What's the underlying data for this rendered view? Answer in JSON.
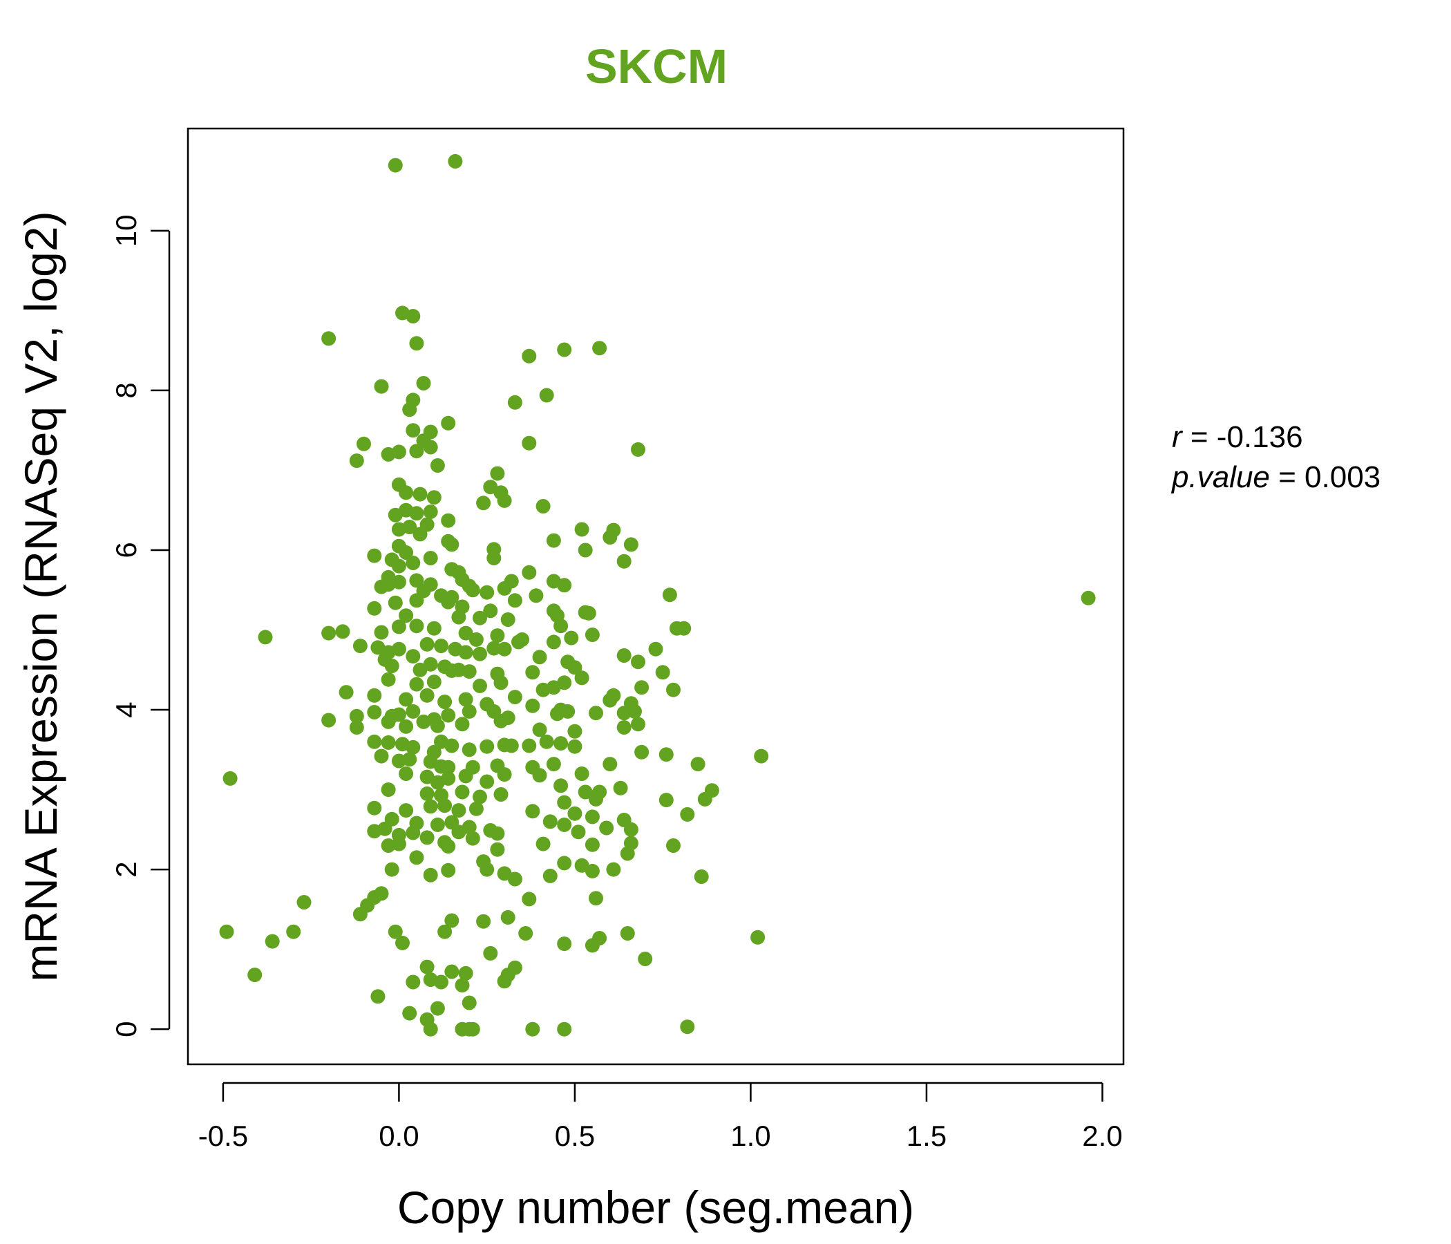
{
  "chart_data": {
    "type": "scatter",
    "title": "SKCM",
    "xlabel": "Copy number (seg.mean)",
    "ylabel": "mRNA Expression (RNASeq V2, log2)",
    "xlim": [
      -0.6,
      2.06
    ],
    "ylim": [
      -0.44,
      11.28
    ],
    "xticks": [
      -0.5,
      0.0,
      0.5,
      1.0,
      1.5,
      2.0
    ],
    "xtick_labels": [
      "-0.5",
      "0.0",
      "0.5",
      "1.0",
      "1.5",
      "2.0"
    ],
    "yticks": [
      0,
      2,
      4,
      6,
      8,
      10
    ],
    "ytick_labels": [
      "0",
      "2",
      "4",
      "6",
      "8",
      "10"
    ],
    "grid": false,
    "colors": {
      "point": "#62a420",
      "title": "#62a420",
      "axis": "#000000"
    },
    "annotations": {
      "r_label": "r",
      "r_value": " = -0.136",
      "p_label": "p.value",
      "p_value": " = 0.003"
    },
    "points": [
      [
        -0.01,
        10.82
      ],
      [
        0.16,
        10.87
      ],
      [
        0.01,
        8.97
      ],
      [
        0.04,
        8.93
      ],
      [
        -0.2,
        8.65
      ],
      [
        0.05,
        8.59
      ],
      [
        0.37,
        8.43
      ],
      [
        0.47,
        8.51
      ],
      [
        0.57,
        8.53
      ],
      [
        -0.05,
        8.05
      ],
      [
        0.07,
        8.09
      ],
      [
        0.42,
        7.94
      ],
      [
        0.04,
        7.88
      ],
      [
        0.03,
        7.76
      ],
      [
        0.33,
        7.85
      ],
      [
        0.04,
        7.5
      ],
      [
        0.09,
        7.48
      ],
      [
        0.14,
        7.59
      ],
      [
        -0.1,
        7.33
      ],
      [
        -0.12,
        7.12
      ],
      [
        -0.03,
        7.2
      ],
      [
        0.0,
        7.23
      ],
      [
        0.05,
        7.24
      ],
      [
        0.07,
        7.37
      ],
      [
        0.09,
        7.29
      ],
      [
        0.11,
        7.06
      ],
      [
        0.37,
        7.34
      ],
      [
        0.68,
        7.26
      ],
      [
        0.0,
        6.82
      ],
      [
        0.02,
        6.72
      ],
      [
        0.06,
        6.7
      ],
      [
        0.1,
        6.66
      ],
      [
        0.09,
        6.48
      ],
      [
        0.28,
        6.96
      ],
      [
        0.26,
        6.79
      ],
      [
        0.29,
        6.72
      ],
      [
        0.3,
        6.62
      ],
      [
        0.24,
        6.59
      ],
      [
        0.41,
        6.55
      ],
      [
        -0.01,
        6.44
      ],
      [
        0.02,
        6.5
      ],
      [
        0.05,
        6.46
      ],
      [
        0.08,
        6.32
      ],
      [
        0.14,
        6.37
      ],
      [
        0.0,
        6.26
      ],
      [
        0.03,
        6.29
      ],
      [
        0.06,
        6.2
      ],
      [
        0.14,
        6.11
      ],
      [
        0.15,
        6.07
      ],
      [
        0.44,
        6.12
      ],
      [
        0.52,
        6.26
      ],
      [
        0.61,
        6.25
      ],
      [
        0.6,
        6.16
      ],
      [
        0.66,
        6.07
      ],
      [
        0.0,
        6.05
      ],
      [
        0.02,
        5.97
      ],
      [
        0.27,
        6.01
      ],
      [
        0.53,
        6.0
      ],
      [
        -0.07,
        5.93
      ],
      [
        -0.02,
        5.88
      ],
      [
        0.0,
        5.8
      ],
      [
        0.04,
        5.84
      ],
      [
        0.09,
        5.9
      ],
      [
        0.27,
        5.9
      ],
      [
        0.64,
        5.86
      ],
      [
        0.15,
        5.76
      ],
      [
        0.17,
        5.72
      ],
      [
        0.37,
        5.72
      ],
      [
        -0.03,
        5.66
      ],
      [
        0.0,
        5.6
      ],
      [
        0.05,
        5.62
      ],
      [
        0.18,
        5.63
      ],
      [
        0.2,
        5.55
      ],
      [
        0.44,
        5.61
      ],
      [
        0.47,
        5.56
      ],
      [
        0.32,
        5.61
      ],
      [
        -0.05,
        5.54
      ],
      [
        -0.03,
        5.57
      ],
      [
        0.07,
        5.49
      ],
      [
        0.09,
        5.57
      ],
      [
        0.12,
        5.43
      ],
      [
        0.15,
        5.41
      ],
      [
        0.21,
        5.5
      ],
      [
        0.25,
        5.47
      ],
      [
        0.3,
        5.52
      ],
      [
        0.39,
        5.43
      ],
      [
        0.77,
        5.44
      ],
      [
        -0.01,
        5.34
      ],
      [
        0.05,
        5.37
      ],
      [
        0.14,
        5.35
      ],
      [
        0.18,
        5.29
      ],
      [
        0.26,
        5.24
      ],
      [
        0.33,
        5.37
      ],
      [
        0.44,
        5.24
      ],
      [
        0.53,
        5.22
      ],
      [
        0.54,
        5.21
      ],
      [
        -0.07,
        5.27
      ],
      [
        0.02,
        5.18
      ],
      [
        0.17,
        5.16
      ],
      [
        0.23,
        5.15
      ],
      [
        0.31,
        5.13
      ],
      [
        0.45,
        5.18
      ],
      [
        0.46,
        5.05
      ],
      [
        1.96,
        5.4
      ],
      [
        -0.2,
        4.96
      ],
      [
        -0.16,
        4.98
      ],
      [
        -0.05,
        4.97
      ],
      [
        0.0,
        5.04
      ],
      [
        0.05,
        5.05
      ],
      [
        0.1,
        5.02
      ],
      [
        0.19,
        4.96
      ],
      [
        0.22,
        4.88
      ],
      [
        0.28,
        4.93
      ],
      [
        0.35,
        4.88
      ],
      [
        0.44,
        4.85
      ],
      [
        0.49,
        4.9
      ],
      [
        0.55,
        4.94
      ],
      [
        0.79,
        5.02
      ],
      [
        0.81,
        5.02
      ],
      [
        -0.38,
        4.91
      ],
      [
        -0.11,
        4.8
      ],
      [
        -0.06,
        4.78
      ],
      [
        -0.03,
        4.72
      ],
      [
        0.0,
        4.76
      ],
      [
        0.04,
        4.67
      ],
      [
        0.08,
        4.82
      ],
      [
        0.12,
        4.8
      ],
      [
        0.16,
        4.76
      ],
      [
        0.19,
        4.72
      ],
      [
        0.23,
        4.7
      ],
      [
        0.27,
        4.77
      ],
      [
        0.3,
        4.76
      ],
      [
        0.34,
        4.85
      ],
      [
        0.4,
        4.66
      ],
      [
        0.48,
        4.6
      ],
      [
        0.64,
        4.68
      ],
      [
        0.68,
        4.6
      ],
      [
        0.73,
        4.76
      ],
      [
        -0.04,
        4.63
      ],
      [
        -0.02,
        4.55
      ],
      [
        0.06,
        4.5
      ],
      [
        0.09,
        4.57
      ],
      [
        0.13,
        4.54
      ],
      [
        0.15,
        4.49
      ],
      [
        0.17,
        4.5
      ],
      [
        0.2,
        4.48
      ],
      [
        0.28,
        4.45
      ],
      [
        0.38,
        4.47
      ],
      [
        0.5,
        4.53
      ],
      [
        0.52,
        4.4
      ],
      [
        0.75,
        4.47
      ],
      [
        -0.03,
        4.38
      ],
      [
        0.05,
        4.32
      ],
      [
        0.1,
        4.35
      ],
      [
        0.23,
        4.3
      ],
      [
        0.29,
        4.34
      ],
      [
        0.41,
        4.25
      ],
      [
        0.44,
        4.28
      ],
      [
        0.47,
        4.34
      ],
      [
        0.61,
        4.18
      ],
      [
        0.69,
        4.28
      ],
      [
        0.78,
        4.25
      ],
      [
        -0.15,
        4.22
      ],
      [
        -0.07,
        4.18
      ],
      [
        0.02,
        4.13
      ],
      [
        0.08,
        4.18
      ],
      [
        0.13,
        4.1
      ],
      [
        0.19,
        4.13
      ],
      [
        0.25,
        4.07
      ],
      [
        0.33,
        4.16
      ],
      [
        0.38,
        4.05
      ],
      [
        0.46,
        4.0
      ],
      [
        0.6,
        4.12
      ],
      [
        0.66,
        4.08
      ],
      [
        -0.12,
        3.92
      ],
      [
        -0.07,
        3.97
      ],
      [
        -0.02,
        3.92
      ],
      [
        0.0,
        3.94
      ],
      [
        0.04,
        3.98
      ],
      [
        0.1,
        3.88
      ],
      [
        0.14,
        3.93
      ],
      [
        0.2,
        3.98
      ],
      [
        0.27,
        3.98
      ],
      [
        0.31,
        3.9
      ],
      [
        0.45,
        3.95
      ],
      [
        0.48,
        3.98
      ],
      [
        0.56,
        3.96
      ],
      [
        0.64,
        3.96
      ],
      [
        0.67,
        3.98
      ],
      [
        -0.2,
        3.87
      ],
      [
        -0.12,
        3.78
      ],
      [
        -0.03,
        3.85
      ],
      [
        0.02,
        3.79
      ],
      [
        0.07,
        3.85
      ],
      [
        0.11,
        3.8
      ],
      [
        0.18,
        3.82
      ],
      [
        0.29,
        3.86
      ],
      [
        0.4,
        3.75
      ],
      [
        0.5,
        3.73
      ],
      [
        0.64,
        3.78
      ],
      [
        0.68,
        3.82
      ],
      [
        -0.07,
        3.6
      ],
      [
        -0.03,
        3.59
      ],
      [
        0.01,
        3.57
      ],
      [
        0.04,
        3.53
      ],
      [
        0.1,
        3.47
      ],
      [
        0.12,
        3.6
      ],
      [
        0.15,
        3.55
      ],
      [
        0.2,
        3.5
      ],
      [
        0.25,
        3.54
      ],
      [
        0.3,
        3.56
      ],
      [
        0.32,
        3.55
      ],
      [
        0.37,
        3.55
      ],
      [
        0.42,
        3.6
      ],
      [
        0.46,
        3.58
      ],
      [
        0.5,
        3.54
      ],
      [
        0.69,
        3.47
      ],
      [
        0.76,
        3.44
      ],
      [
        1.03,
        3.42
      ],
      [
        -0.05,
        3.42
      ],
      [
        0.0,
        3.36
      ],
      [
        0.03,
        3.38
      ],
      [
        0.09,
        3.35
      ],
      [
        0.12,
        3.29
      ],
      [
        0.14,
        3.28
      ],
      [
        0.21,
        3.28
      ],
      [
        0.28,
        3.3
      ],
      [
        0.38,
        3.28
      ],
      [
        0.44,
        3.32
      ],
      [
        0.52,
        3.2
      ],
      [
        0.6,
        3.32
      ],
      [
        0.85,
        3.32
      ],
      [
        -0.48,
        3.14
      ],
      [
        0.02,
        3.2
      ],
      [
        0.08,
        3.16
      ],
      [
        0.11,
        3.09
      ],
      [
        0.14,
        3.14
      ],
      [
        0.19,
        3.17
      ],
      [
        0.25,
        3.1
      ],
      [
        0.3,
        3.19
      ],
      [
        0.4,
        3.18
      ],
      [
        0.46,
        3.05
      ],
      [
        0.53,
        2.97
      ],
      [
        0.57,
        2.97
      ],
      [
        0.63,
        3.02
      ],
      [
        0.89,
        2.99
      ],
      [
        -0.03,
        3.0
      ],
      [
        0.08,
        2.95
      ],
      [
        0.12,
        2.93
      ],
      [
        0.18,
        2.97
      ],
      [
        0.23,
        2.91
      ],
      [
        0.29,
        2.94
      ],
      [
        0.47,
        2.84
      ],
      [
        0.56,
        2.88
      ],
      [
        0.76,
        2.87
      ],
      [
        0.87,
        2.88
      ],
      [
        -0.07,
        2.77
      ],
      [
        0.02,
        2.74
      ],
      [
        0.09,
        2.79
      ],
      [
        0.13,
        2.8
      ],
      [
        0.17,
        2.74
      ],
      [
        0.22,
        2.76
      ],
      [
        0.38,
        2.73
      ],
      [
        0.5,
        2.7
      ],
      [
        0.55,
        2.66
      ],
      [
        0.64,
        2.62
      ],
      [
        0.82,
        2.69
      ],
      [
        -0.02,
        2.63
      ],
      [
        0.05,
        2.58
      ],
      [
        0.11,
        2.56
      ],
      [
        0.15,
        2.59
      ],
      [
        0.2,
        2.53
      ],
      [
        0.26,
        2.49
      ],
      [
        0.43,
        2.6
      ],
      [
        0.47,
        2.56
      ],
      [
        0.59,
        2.52
      ],
      [
        0.66,
        2.5
      ],
      [
        -0.07,
        2.48
      ],
      [
        -0.04,
        2.51
      ],
      [
        0.0,
        2.43
      ],
      [
        0.04,
        2.46
      ],
      [
        0.08,
        2.4
      ],
      [
        0.13,
        2.34
      ],
      [
        0.17,
        2.47
      ],
      [
        0.21,
        2.39
      ],
      [
        0.28,
        2.45
      ],
      [
        0.41,
        2.32
      ],
      [
        0.51,
        2.47
      ],
      [
        0.55,
        2.31
      ],
      [
        0.66,
        2.33
      ],
      [
        0.78,
        2.3
      ],
      [
        -0.03,
        2.3
      ],
      [
        0.0,
        2.32
      ],
      [
        0.05,
        2.15
      ],
      [
        0.14,
        2.29
      ],
      [
        0.28,
        2.25
      ],
      [
        0.47,
        2.08
      ],
      [
        0.52,
        2.05
      ],
      [
        0.65,
        2.2
      ],
      [
        0.24,
        2.1
      ],
      [
        -0.02,
        2.0
      ],
      [
        0.09,
        1.93
      ],
      [
        0.14,
        1.99
      ],
      [
        0.25,
        2.0
      ],
      [
        0.3,
        1.95
      ],
      [
        0.33,
        1.88
      ],
      [
        0.43,
        1.92
      ],
      [
        0.55,
        1.98
      ],
      [
        0.61,
        2.0
      ],
      [
        0.86,
        1.91
      ],
      [
        -0.27,
        1.59
      ],
      [
        -0.07,
        1.65
      ],
      [
        -0.05,
        1.7
      ],
      [
        -0.09,
        1.55
      ],
      [
        -0.11,
        1.44
      ],
      [
        0.37,
        1.63
      ],
      [
        0.56,
        1.64
      ],
      [
        -0.3,
        1.22
      ],
      [
        -0.49,
        1.22
      ],
      [
        -0.36,
        1.1
      ],
      [
        -0.01,
        1.22
      ],
      [
        0.01,
        1.08
      ],
      [
        0.13,
        1.22
      ],
      [
        0.15,
        1.36
      ],
      [
        0.24,
        1.35
      ],
      [
        0.31,
        1.4
      ],
      [
        0.36,
        1.2
      ],
      [
        0.47,
        1.07
      ],
      [
        0.55,
        1.05
      ],
      [
        0.57,
        1.14
      ],
      [
        0.65,
        1.2
      ],
      [
        1.02,
        1.15
      ],
      [
        0.26,
        0.95
      ],
      [
        0.31,
        0.68
      ],
      [
        0.33,
        0.77
      ],
      [
        0.7,
        0.88
      ],
      [
        -0.41,
        0.68
      ],
      [
        0.08,
        0.78
      ],
      [
        0.15,
        0.72
      ],
      [
        0.19,
        0.7
      ],
      [
        0.04,
        0.59
      ],
      [
        0.09,
        0.62
      ],
      [
        0.12,
        0.59
      ],
      [
        0.18,
        0.55
      ],
      [
        0.3,
        0.6
      ],
      [
        -0.06,
        0.41
      ],
      [
        0.03,
        0.2
      ],
      [
        0.11,
        0.26
      ],
      [
        0.08,
        0.12
      ],
      [
        0.2,
        0.33
      ],
      [
        0.09,
        0.0
      ],
      [
        0.18,
        0.0
      ],
      [
        0.2,
        0.0
      ],
      [
        0.21,
        0.0
      ],
      [
        0.38,
        0.0
      ],
      [
        0.47,
        0.0
      ],
      [
        0.82,
        0.03
      ]
    ]
  }
}
